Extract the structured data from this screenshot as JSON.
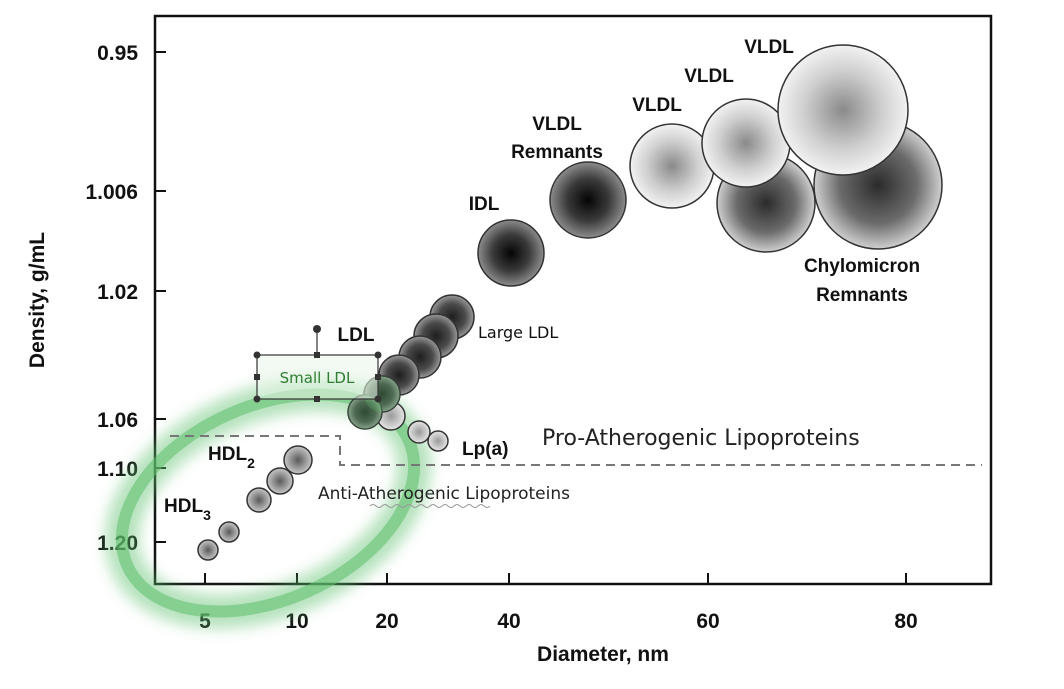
{
  "chart_data": {
    "type": "scatter",
    "title": "",
    "xlabel": "Diameter, nm",
    "ylabel": "Density, g/mL",
    "x_ticks": [
      "5",
      "10",
      "20",
      "40",
      "60",
      "80"
    ],
    "y_ticks": [
      "0.95",
      "1.006",
      "1.02",
      "1.06",
      "1.10",
      "1.20"
    ],
    "particles": [
      {
        "class": "HDL3",
        "x": 5.5,
        "y": 1.21
      },
      {
        "class": "HDL3",
        "x": 6.5,
        "y": 1.19
      },
      {
        "class": "HDL2",
        "x": 8.5,
        "y": 1.13
      },
      {
        "class": "HDL2",
        "x": 9.5,
        "y": 1.115
      },
      {
        "class": "HDL2",
        "x": 10.5,
        "y": 1.095
      },
      {
        "class": "Small LDL",
        "x": 17.5,
        "y": 1.058
      },
      {
        "class": "Small LDL",
        "x": 19.5,
        "y": 1.048
      },
      {
        "class": "Large LDL",
        "x": 21.5,
        "y": 1.043
      },
      {
        "class": "Large LDL",
        "x": 23.5,
        "y": 1.036
      },
      {
        "class": "Large LDL",
        "x": 25.5,
        "y": 1.029
      },
      {
        "class": "Large LDL",
        "x": 27.5,
        "y": 1.022
      },
      {
        "class": "Lp(a)",
        "x": 20.5,
        "y": 1.062
      },
      {
        "class": "Lp(a)",
        "x": 23.0,
        "y": 1.068
      },
      {
        "class": "Lp(a)",
        "x": 25.0,
        "y": 1.072
      },
      {
        "class": "IDL",
        "x": 40.5,
        "y": 1.012
      },
      {
        "class": "VLDL Remnants",
        "x": 48.5,
        "y": 1.006
      },
      {
        "class": "Chylomicron Remnants",
        "x": 66.0,
        "y": 1.004
      },
      {
        "class": "Chylomicron Remnants",
        "x": 77.0,
        "y": 1.004
      },
      {
        "class": "VLDL",
        "x": 57.0,
        "y": 1.002
      },
      {
        "class": "VLDL",
        "x": 65.0,
        "y": 0.985
      },
      {
        "class": "VLDL",
        "x": 73.0,
        "y": 0.975
      }
    ],
    "labels": {
      "hdl3": "HDL3",
      "hdl2": "HDL2",
      "ldl": "LDL",
      "small_ldl": "Small LDL",
      "large_ldl": "Large LDL",
      "lpa": "Lp(a)",
      "idl": "IDL",
      "vldl_remnants_1": "VLDL",
      "vldl_remnants_2": "Remnants",
      "vldl_a": "VLDL",
      "vldl_b": "VLDL",
      "vldl_c": "VLDL",
      "chylo_1": "Chylomicron",
      "chylo_2": "Remnants"
    },
    "regions": {
      "pro": "Pro-Atherogenic Lipoproteins",
      "anti": "Anti-Atherogenic Lipoproteins"
    },
    "colors": {
      "highlight": "#5cbf6c",
      "dark_particle": "#1a1a1a",
      "light_particle": "#e8e8e8"
    },
    "grid": false,
    "legend": "none"
  }
}
